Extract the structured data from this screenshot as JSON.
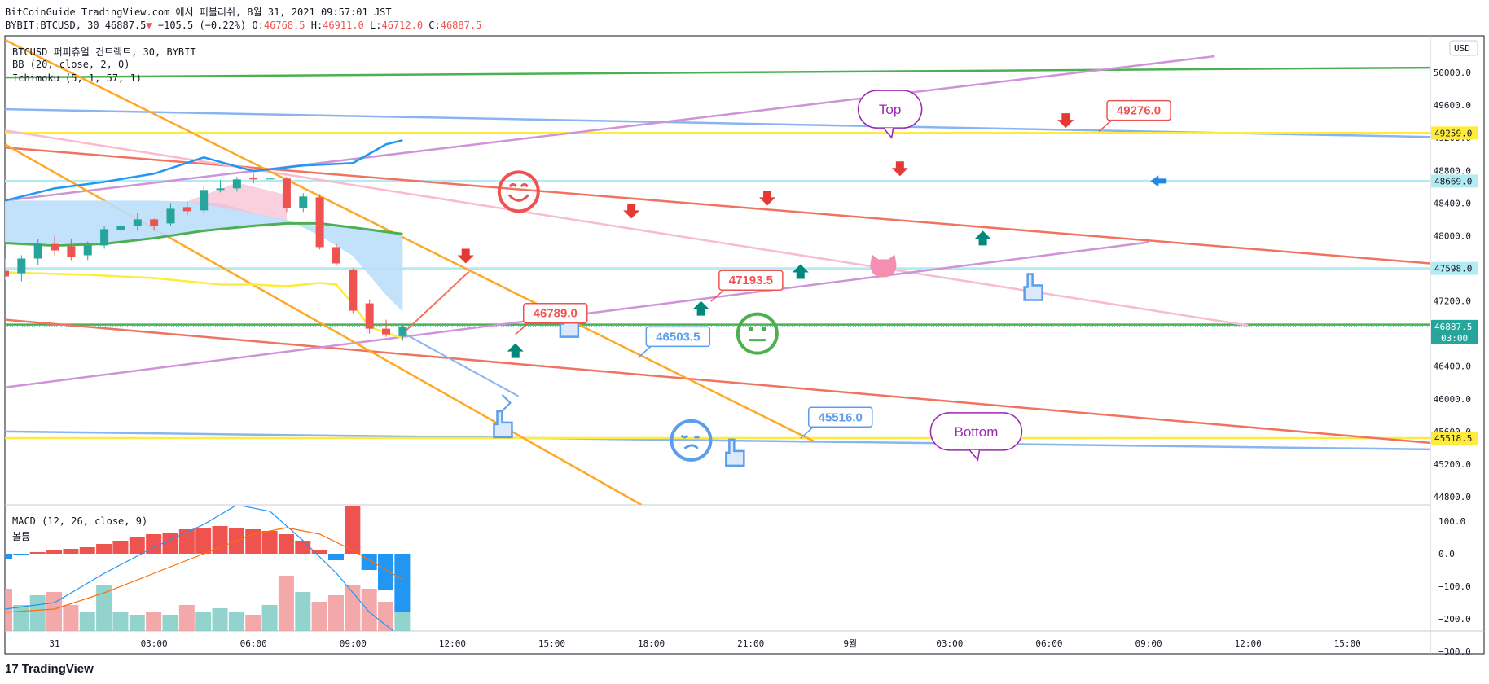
{
  "header": {
    "publish_line": "BitCoinGuide TradingView.com 에서 퍼블리쉬, 8월 31, 2021 09:57:01 JST",
    "symbol": "BYBIT:BTCUSD, 30",
    "last": "46887.5",
    "down_arrow": "▼",
    "change": "−105.5 (−0.22%)",
    "open_label": "O:",
    "open": "46768.5",
    "high_label": "H:",
    "high": "46911.0",
    "low_label": "L:",
    "low": "46712.0",
    "close_label": "C:",
    "close": "46887.5"
  },
  "legend": {
    "main": "BTCUSD 퍼피츄얼 컨트랙트, 30, BYBIT",
    "bb": "BB (20, close, 2, 0)",
    "ichimoku": "Ichimoku (5, 1, 57, 1)",
    "macd": "MACD (12, 26, close, 9)",
    "volume": "볼륨"
  },
  "footer": {
    "brand": "TradingView",
    "logo_text": "17"
  },
  "colors": {
    "up": "#26a69a",
    "down": "#ef5350",
    "blue": "#2196f3",
    "green": "#4caf50",
    "yellow": "#ffeb3b",
    "orange": "#ffa726",
    "red_line": "#f0735f",
    "pink": "#f8bbd0",
    "violet": "#ce93d8",
    "lightblue": "#8ab4f0",
    "cyan": "#b2ebf2"
  },
  "chart_data": {
    "type": "candlestick",
    "symbol": "BTCUSD",
    "interval": "30",
    "exchange": "BYBIT",
    "price_axis": {
      "unit": "USD",
      "ticks": [
        50000,
        49600,
        49200,
        48800,
        48400,
        48000,
        47600,
        47200,
        46800,
        46400,
        46000,
        45600,
        45200,
        44800
      ],
      "tick_labels": [
        "50000.0",
        "49600.0",
        "49200.0",
        "48800.0",
        "48400.0",
        "48000.0",
        "47600.0",
        "47200.0",
        "46800.0",
        "46400.0",
        "46000.0",
        "45600.0",
        "45200.0",
        "44800.0"
      ],
      "range": [
        44700,
        50450
      ]
    },
    "time_axis": {
      "labels": [
        "31",
        "03:00",
        "06:00",
        "09:00",
        "12:00",
        "15:00",
        "18:00",
        "21:00",
        "9월",
        "03:00",
        "06:00",
        "09:00",
        "12:00",
        "15:00"
      ],
      "hours": [
        0,
        3,
        6,
        9,
        12,
        15,
        18,
        21,
        24,
        27,
        30,
        33,
        36,
        39
      ],
      "range_hours": [
        -1.5,
        41.5
      ]
    },
    "candles": [
      {
        "t": -1.5,
        "o": 47570,
        "h": 47720,
        "l": 47460,
        "c": 47500
      },
      {
        "t": -1.0,
        "o": 47540,
        "h": 47760,
        "l": 47440,
        "c": 47720
      },
      {
        "t": -0.5,
        "o": 47720,
        "h": 47960,
        "l": 47640,
        "c": 47900
      },
      {
        "t": 0.0,
        "o": 47900,
        "h": 48000,
        "l": 47760,
        "c": 47820
      },
      {
        "t": 0.5,
        "o": 47870,
        "h": 47960,
        "l": 47700,
        "c": 47740
      },
      {
        "t": 1.0,
        "o": 47760,
        "h": 47930,
        "l": 47700,
        "c": 47880
      },
      {
        "t": 1.5,
        "o": 47880,
        "h": 48120,
        "l": 47840,
        "c": 48080
      },
      {
        "t": 2.0,
        "o": 48070,
        "h": 48190,
        "l": 48010,
        "c": 48120
      },
      {
        "t": 2.5,
        "o": 48120,
        "h": 48280,
        "l": 48060,
        "c": 48200
      },
      {
        "t": 3.0,
        "o": 48200,
        "h": 48210,
        "l": 48060,
        "c": 48120
      },
      {
        "t": 3.5,
        "o": 48150,
        "h": 48400,
        "l": 48120,
        "c": 48330
      },
      {
        "t": 4.0,
        "o": 48350,
        "h": 48420,
        "l": 48250,
        "c": 48300
      },
      {
        "t": 4.5,
        "o": 48310,
        "h": 48600,
        "l": 48280,
        "c": 48560
      },
      {
        "t": 5.0,
        "o": 48560,
        "h": 48680,
        "l": 48530,
        "c": 48580
      },
      {
        "t": 5.5,
        "o": 48580,
        "h": 48720,
        "l": 48540,
        "c": 48690
      },
      {
        "t": 6.0,
        "o": 48710,
        "h": 48760,
        "l": 48640,
        "c": 48690
      },
      {
        "t": 6.5,
        "o": 48690,
        "h": 48740,
        "l": 48580,
        "c": 48700
      },
      {
        "t": 7.0,
        "o": 48700,
        "h": 48720,
        "l": 48290,
        "c": 48340
      },
      {
        "t": 7.5,
        "o": 48340,
        "h": 48520,
        "l": 48290,
        "c": 48480
      },
      {
        "t": 8.0,
        "o": 48470,
        "h": 48510,
        "l": 47830,
        "c": 47860
      },
      {
        "t": 8.5,
        "o": 47860,
        "h": 47900,
        "l": 47640,
        "c": 47660
      },
      {
        "t": 9.0,
        "o": 47580,
        "h": 47600,
        "l": 47050,
        "c": 47080
      },
      {
        "t": 9.5,
        "o": 47170,
        "h": 47220,
        "l": 46800,
        "c": 46860
      },
      {
        "t": 10.0,
        "o": 46860,
        "h": 46970,
        "l": 46760,
        "c": 46790
      },
      {
        "t": 10.5,
        "o": 46768.5,
        "h": 46911,
        "l": 46712,
        "c": 46887.5
      }
    ],
    "bollinger_upper": [
      [
        -1.5,
        48430
      ],
      [
        0,
        48580
      ],
      [
        1.5,
        48660
      ],
      [
        3,
        48760
      ],
      [
        4.5,
        48960
      ],
      [
        6,
        48790
      ],
      [
        7.5,
        48860
      ],
      [
        9,
        48890
      ],
      [
        10,
        49120
      ],
      [
        10.5,
        49170
      ]
    ],
    "ichimoku_lines": {
      "green": [
        [
          -1.5,
          47910
        ],
        [
          0,
          47880
        ],
        [
          1.5,
          47900
        ],
        [
          3,
          47970
        ],
        [
          4.5,
          48060
        ],
        [
          6,
          48120
        ],
        [
          7,
          48150
        ],
        [
          8,
          48150
        ],
        [
          9,
          48100
        ],
        [
          10.5,
          48020
        ]
      ],
      "yellow": [
        [
          -1.5,
          47550
        ],
        [
          1,
          47520
        ],
        [
          3,
          47480
        ],
        [
          5,
          47400
        ],
        [
          6,
          47400
        ],
        [
          7,
          47380
        ],
        [
          8,
          47420
        ],
        [
          8.5,
          47400
        ],
        [
          9,
          47160
        ],
        [
          9.5,
          46880
        ],
        [
          10.5,
          46740
        ]
      ]
    },
    "drawings_prices": {
      "labels": [
        {
          "text": "46789.0",
          "price": 46789,
          "t": 13.9
        },
        {
          "text": "47193.5",
          "price": 47193.5,
          "t": 19.8
        },
        {
          "text": "46503.5",
          "price": 46503.5,
          "t": 17.6
        },
        {
          "text": "45516.0",
          "price": 45516,
          "t": 22.5
        },
        {
          "text": "49276.0",
          "price": 49276,
          "t": 31.5
        }
      ],
      "callouts": [
        "Top",
        "Bottom"
      ]
    },
    "price_badges": [
      {
        "text": "49259.0",
        "price": 49259,
        "style": "yellow"
      },
      {
        "text": "48669.0",
        "price": 48669,
        "style": "cyan"
      },
      {
        "text": "47598.0",
        "price": 47598,
        "style": "cyan"
      },
      {
        "text": "46887.5",
        "sub": "03:00",
        "price": 46887.5,
        "style": "green"
      },
      {
        "text": "45518.5",
        "price": 45518.5,
        "style": "yellow"
      }
    ],
    "macd": {
      "ticks": [
        100,
        0,
        -100,
        -200,
        -300
      ],
      "tick_labels": [
        "100.0",
        "0.0",
        "−100.0",
        "−200.0",
        "−300.0"
      ],
      "histogram": [
        [
          -1.5,
          -15
        ],
        [
          -1,
          -5
        ],
        [
          -0.5,
          5
        ],
        [
          0,
          10
        ],
        [
          0.5,
          15
        ],
        [
          1,
          20
        ],
        [
          1.5,
          30
        ],
        [
          2,
          40
        ],
        [
          2.5,
          50
        ],
        [
          3,
          60
        ],
        [
          3.5,
          65
        ],
        [
          4,
          75
        ],
        [
          4.5,
          80
        ],
        [
          5,
          85
        ],
        [
          5.5,
          80
        ],
        [
          6,
          75
        ],
        [
          6.5,
          70
        ],
        [
          7,
          60
        ],
        [
          7.5,
          40
        ],
        [
          8,
          10
        ],
        [
          8.5,
          -20
        ],
        [
          9,
          180
        ],
        [
          9.5,
          -50
        ],
        [
          10,
          -110
        ],
        [
          10.5,
          -180
        ]
      ],
      "macd_line": [
        [
          -1.5,
          -170
        ],
        [
          0,
          -150
        ],
        [
          1.5,
          -60
        ],
        [
          3,
          20
        ],
        [
          4.5,
          90
        ],
        [
          5.5,
          150
        ],
        [
          6.5,
          130
        ],
        [
          7.5,
          40
        ],
        [
          8.5,
          -60
        ],
        [
          9.5,
          -180
        ],
        [
          10.5,
          -260
        ]
      ],
      "signal_line": [
        [
          -1.5,
          -180
        ],
        [
          0,
          -170
        ],
        [
          1.5,
          -120
        ],
        [
          3,
          -60
        ],
        [
          4.5,
          0
        ],
        [
          6,
          60
        ],
        [
          7,
          80
        ],
        [
          8,
          60
        ],
        [
          9,
          10
        ],
        [
          10,
          -50
        ],
        [
          10.5,
          -80
        ]
      ]
    },
    "volume": [
      0.65,
      0.4,
      0.55,
      0.6,
      0.4,
      0.3,
      0.7,
      0.3,
      0.25,
      0.3,
      0.25,
      0.4,
      0.3,
      0.35,
      0.3,
      0.25,
      0.4,
      0.85,
      0.6,
      0.45,
      0.55,
      0.7,
      0.65,
      0.45,
      0.4
    ]
  }
}
